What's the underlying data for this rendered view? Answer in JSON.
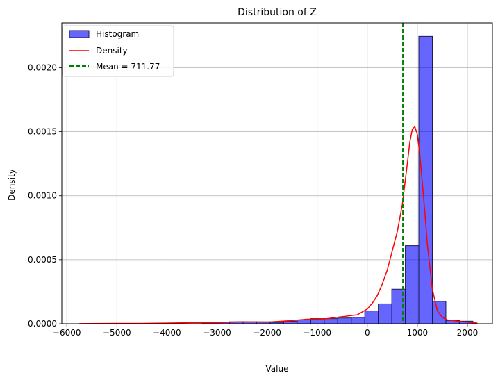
{
  "chart_data": {
    "type": "histogram",
    "title": "Distribution of Z",
    "xlabel": "Value",
    "ylabel": "Density",
    "xlim": [
      -6100,
      2500
    ],
    "ylim": [
      0,
      0.00235
    ],
    "grid": true,
    "legend_position": "top-left",
    "x_ticks": [
      -6000,
      -5000,
      -4000,
      -3000,
      -2000,
      -1000,
      0,
      1000,
      2000
    ],
    "x_tick_labels": [
      "−6000",
      "−5000",
      "−4000",
      "−3000",
      "−2000",
      "−1000",
      "0",
      "1000",
      "2000"
    ],
    "y_ticks": [
      0,
      0.0005,
      0.001,
      0.0015,
      0.002
    ],
    "y_tick_labels": [
      "0.0000",
      "0.0005",
      "0.0010",
      "0.0015",
      "0.0020"
    ],
    "histogram": {
      "name": "Histogram",
      "color": "#0000ff",
      "edge_color": "#1a1a4d",
      "bin_edges": [
        -5720,
        -5450,
        -5180,
        -4910,
        -4640,
        -4370,
        -4100,
        -3830,
        -3560,
        -3290,
        -3020,
        -2750,
        -2480,
        -2210,
        -1940,
        -1670,
        -1400,
        -1130,
        -860,
        -590,
        -320,
        -50,
        220,
        490,
        760,
        1030,
        1300,
        1570,
        1840,
        2110
      ],
      "densities": [
        0,
        0,
        0,
        0,
        0,
        0,
        0,
        0,
        0,
        1e-05,
        1.2e-05,
        1.5e-05,
        1.5e-05,
        1.5e-05,
        1e-05,
        2e-05,
        3e-05,
        4e-05,
        4e-05,
        4.5e-05,
        5e-05,
        0.0001,
        0.000155,
        0.00027,
        0.00061,
        0.002245,
        0.000175,
        2.5e-05,
        2e-05
      ]
    },
    "density": {
      "name": "Density",
      "color": "#ff0000",
      "x": [
        -5750,
        -5000,
        -4500,
        -4000,
        -3500,
        -3000,
        -2500,
        -2000,
        -1500,
        -1200,
        -1000,
        -800,
        -600,
        -400,
        -200,
        0,
        100,
        200,
        300,
        400,
        500,
        600,
        700,
        800,
        850,
        900,
        950,
        1000,
        1050,
        1100,
        1150,
        1200,
        1300,
        1400,
        1500,
        1600,
        1800,
        2000,
        2200
      ],
      "y": [
        1e-06,
        3e-06,
        3e-06,
        5e-06,
        8e-06,
        8e-06,
        1.5e-05,
        1.2e-05,
        2.5e-05,
        3.5e-05,
        3.5e-05,
        4e-05,
        5e-05,
        6e-05,
        7e-05,
        0.000115,
        0.00016,
        0.00022,
        0.00031,
        0.00042,
        0.00057,
        0.00072,
        0.00093,
        0.00125,
        0.00142,
        0.00152,
        0.00154,
        0.00148,
        0.00132,
        0.0011,
        0.00087,
        0.00062,
        0.00027,
        0.0001,
        5e-05,
        3e-05,
        2e-05,
        1.2e-05,
        5e-06
      ]
    },
    "mean_line": {
      "name": "Mean = 711.77",
      "value": 711.77,
      "color": "#008000"
    }
  }
}
